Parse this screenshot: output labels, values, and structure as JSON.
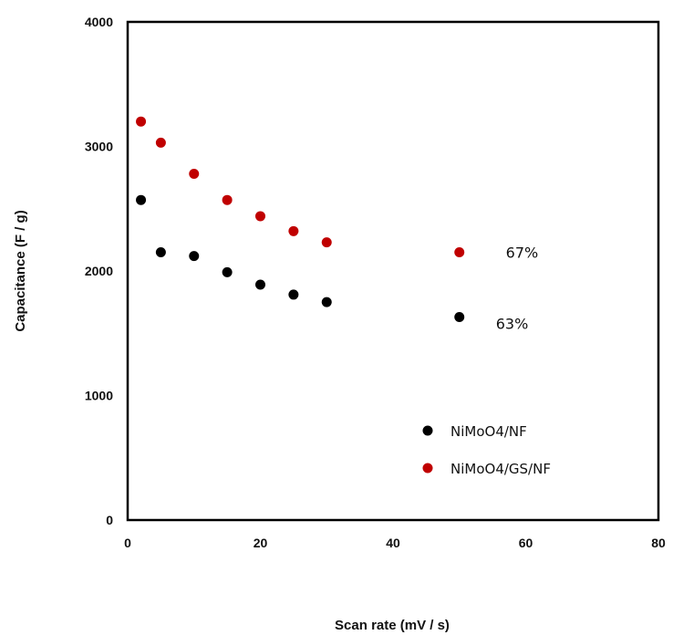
{
  "chart_data": {
    "type": "scatter",
    "title": "",
    "xlabel": "Scan rate (mV / s)",
    "ylabel": "Capacitance (F / g)",
    "xlim": [
      0,
      80
    ],
    "ylim": [
      0,
      4000
    ],
    "xticks": [
      "0",
      "20",
      "40",
      "60",
      "80"
    ],
    "yticks": [
      "0",
      "1000",
      "2000",
      "3000",
      "4000"
    ],
    "grid": false,
    "legend_position": "bottom-right",
    "series": [
      {
        "name": "NiMoO4/NF",
        "color": "#000000",
        "points": [
          {
            "x": 2,
            "y": 2570
          },
          {
            "x": 5,
            "y": 2150
          },
          {
            "x": 10,
            "y": 2120
          },
          {
            "x": 15,
            "y": 1990
          },
          {
            "x": 20,
            "y": 1890
          },
          {
            "x": 25,
            "y": 1810
          },
          {
            "x": 30,
            "y": 1750
          },
          {
            "x": 50,
            "y": 1630
          }
        ]
      },
      {
        "name": "NiMoO4/GS/NF",
        "color": "#c00000",
        "points": [
          {
            "x": 2,
            "y": 3200
          },
          {
            "x": 5,
            "y": 3030
          },
          {
            "x": 10,
            "y": 2780
          },
          {
            "x": 15,
            "y": 2570
          },
          {
            "x": 20,
            "y": 2440
          },
          {
            "x": 25,
            "y": 2320
          },
          {
            "x": 30,
            "y": 2230
          },
          {
            "x": 50,
            "y": 2150
          }
        ]
      }
    ],
    "annotations": [
      {
        "text": "67%",
        "x": 57,
        "y": 2150
      },
      {
        "text": "63%",
        "x": 55.5,
        "y": 1580
      }
    ]
  }
}
